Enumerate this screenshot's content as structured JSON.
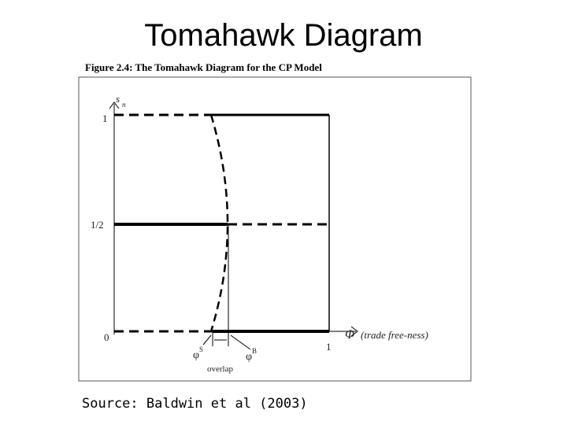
{
  "header": {
    "title": "Tomahawk Diagram"
  },
  "figure": {
    "caption": "Figure 2.4: The Tomahawk Diagram for the CP Model",
    "y_axis_label": "s",
    "y_axis_subscript": "n",
    "y_labels": [
      "1",
      "1/2",
      "0"
    ],
    "x_tick_label": "1",
    "x_axis_symbol": "Φ",
    "x_axis_label": "(trade free-ness)",
    "phi_s": "φ",
    "phi_s_sup": "S",
    "phi_b": "φ",
    "phi_b_sup": "B",
    "overlap": "overlap"
  },
  "source": "Source: Baldwin et al (2003)"
}
